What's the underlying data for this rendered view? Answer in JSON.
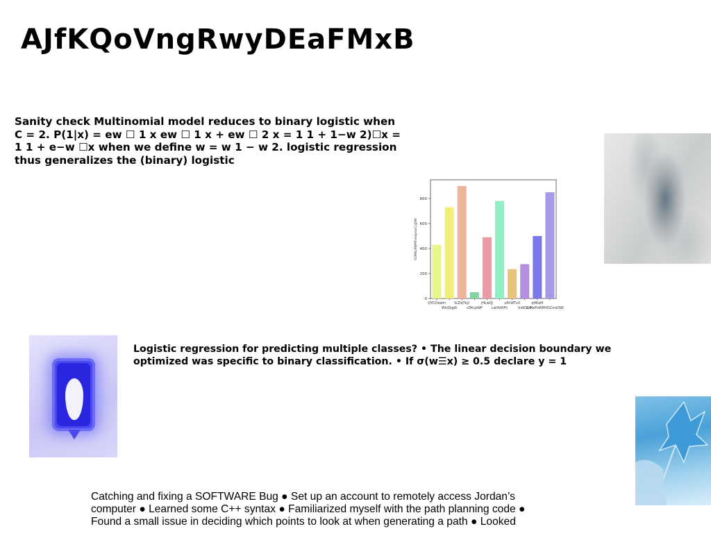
{
  "slide": {
    "title": "AJfKQoVngRwyDEaFMxB",
    "paragraph_1": "Sanity check Multinomial model reduces to binary logistic when C = 2. P(1|x) = ew ☐ 1 x ew ☐ 1 x + ew ☐ 2 x = 1 1 + 1−w 2)☐x = 1 1 + e−w ☐x when we define w = w 1 − w 2. logistic regression thus generalizes the (binary) logistic",
    "paragraph_2": "Logistic regression for predicting multiple classes? • The linear decision boundary we optimized was specific to binary classification. • If σ(w☰x) ≥ 0.5 declare y = 1",
    "paragraph_3": "Catching and fixing a SOFTWARE Bug ● Set up an account to remotely access Jordan’s computer ● Learned some C++ syntax ● Familiarized myself with the path planning code ● Found a small issue in deciding which points to look at when generating a path ● Looked"
  },
  "chart_data": {
    "type": "bar",
    "categories": [
      "QYCOwwm",
      "WkQbgdt",
      "SLDqTkyl",
      "cDKcpWP",
      "jHLwQJ",
      "LwVbiKFh",
      "vAhWTxX",
      "VxKOUP",
      "qHKaM",
      "LkNeFoWMVGCmsOWxBzZL"
    ],
    "tick_labels": [
      "QYCOwwm",
      "WkQbgdt",
      "SLDqTkyl",
      "cDKcpWP",
      "jHLwQJ",
      "LwVbiKFh",
      "vAhWTxX",
      "VxKOUP",
      "qHKaM",
      "LkNeFoWMVGCmsOWxBzZL"
    ],
    "values": [
      430,
      730,
      900,
      50,
      490,
      780,
      235,
      275,
      500,
      850
    ],
    "colors": [
      "#e8f58a",
      "#f2ee7a",
      "#eeb59a",
      "#7fd4a0",
      "#ee9aa4",
      "#8ff0c2",
      "#e6c57a",
      "#b48ee0",
      "#7b77e8",
      "#a59ae8"
    ],
    "ylabel": "tGMKuRWMFmdyswCuJjWr",
    "xlabel": "",
    "ylim": [
      0,
      950
    ],
    "yticks": [
      0,
      200,
      400,
      600,
      800
    ],
    "grid": false
  }
}
